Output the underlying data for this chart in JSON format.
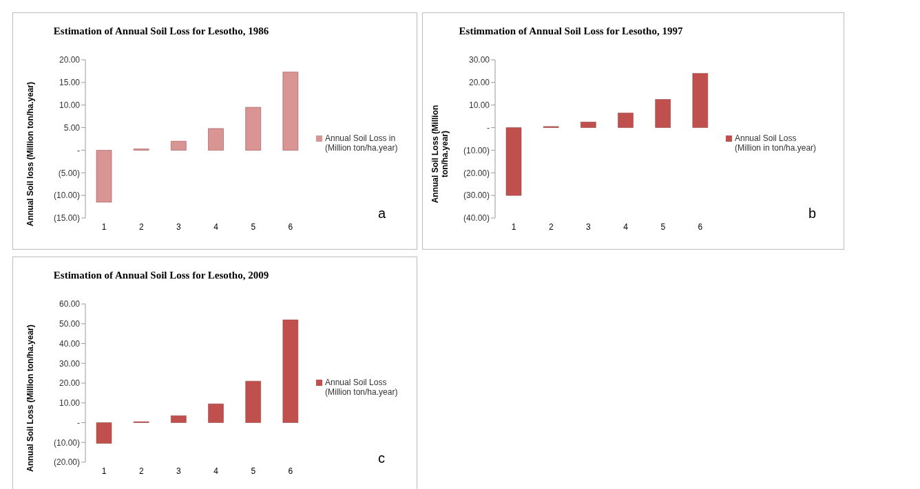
{
  "chart_data": [
    {
      "type": "bar",
      "title": "Estimation of Annual Soil Loss for Lesotho, 1986",
      "ylabel": "Annual Soil loss (Million ton/ha.year)",
      "categories": [
        "1",
        "2",
        "3",
        "4",
        "5",
        "6"
      ],
      "series": [
        {
          "name": "Annual Soil Loss in (Million ton/ha.year)",
          "color": "#d99594",
          "values": [
            -11.5,
            0.3,
            2.0,
            4.8,
            9.5,
            17.3
          ]
        }
      ],
      "ylim": [
        -15,
        20
      ],
      "yticks": [
        {
          "value": -15,
          "label": "(15.00)"
        },
        {
          "value": -10,
          "label": "(10.00)"
        },
        {
          "value": -5,
          "label": "(5.00)"
        },
        {
          "value": 0,
          "label": "-"
        },
        {
          "value": 5,
          "label": "5.00"
        },
        {
          "value": 10,
          "label": "10.00"
        },
        {
          "value": 15,
          "label": "15.00"
        },
        {
          "value": 20,
          "label": "20.00"
        }
      ],
      "grid": false,
      "legend": "right",
      "annotations": [
        "a"
      ]
    },
    {
      "type": "bar",
      "title": "Estimmation of Annual Soil Loss for Lesotho, 1997",
      "ylabel": "Annual Soil Loss (Million ton/ha.year)",
      "categories": [
        "1",
        "2",
        "3",
        "4",
        "5",
        "6"
      ],
      "series": [
        {
          "name": "Annual Soil Loss (Million in ton/ha.year)",
          "color": "#c0504d",
          "values": [
            -30,
            0.5,
            2.5,
            6.5,
            12.5,
            24
          ]
        }
      ],
      "ylim": [
        -40,
        30
      ],
      "yticks": [
        {
          "value": -40,
          "label": "(40.00)"
        },
        {
          "value": -30,
          "label": "(30.00)"
        },
        {
          "value": -20,
          "label": "(20.00)"
        },
        {
          "value": -10,
          "label": "(10.00)"
        },
        {
          "value": 0,
          "label": "-"
        },
        {
          "value": 10,
          "label": "10.00"
        },
        {
          "value": 20,
          "label": "20.00"
        },
        {
          "value": 30,
          "label": "30.00"
        }
      ],
      "grid": false,
      "legend": "right",
      "annotations": [
        "b"
      ]
    },
    {
      "type": "bar",
      "title": "Estimation of Annual Soil Loss for Lesotho, 2009",
      "ylabel": "Annual Soil Loss (Million ton/ha.year)",
      "categories": [
        "1",
        "2",
        "3",
        "4",
        "5",
        "6"
      ],
      "series": [
        {
          "name": "Annual Soil Loss (Million ton/ha.year)",
          "color": "#c0504d",
          "values": [
            -10.5,
            0.5,
            3.5,
            9.5,
            21,
            52
          ]
        }
      ],
      "ylim": [
        -20,
        60
      ],
      "yticks": [
        {
          "value": -20,
          "label": "(20.00)"
        },
        {
          "value": -10,
          "label": "(10.00)"
        },
        {
          "value": 0,
          "label": "-"
        },
        {
          "value": 10,
          "label": "10.00"
        },
        {
          "value": 20,
          "label": "20.00"
        },
        {
          "value": 30,
          "label": "30.00"
        },
        {
          "value": 40,
          "label": "40.00"
        },
        {
          "value": 50,
          "label": "50.00"
        },
        {
          "value": 60,
          "label": "60.00"
        }
      ],
      "grid": false,
      "legend": "right",
      "annotations": [
        "c"
      ]
    }
  ]
}
